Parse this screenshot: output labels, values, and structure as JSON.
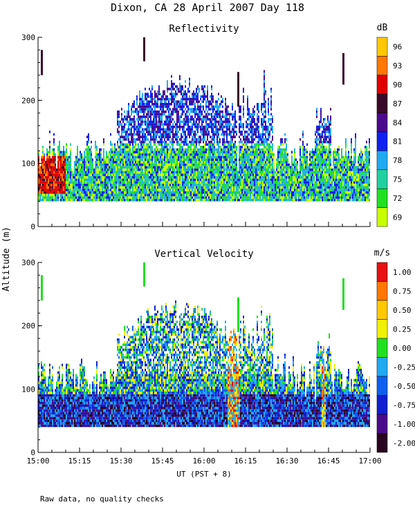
{
  "title": "Dixon, CA 28 April 2007  Day 118",
  "footnote": "Raw data, no quality checks",
  "shared_ylabel": "Altitude (m)",
  "chart_data": [
    {
      "type": "heatmap",
      "title": "Reflectivity",
      "unit": "dB",
      "ylim": [
        0,
        300
      ],
      "yticks": [
        0,
        100,
        200,
        300
      ],
      "xlim_minutes": [
        0,
        120
      ],
      "xtick_labels": [],
      "colorbar_labels": [
        "96",
        "93",
        "90",
        "87",
        "84",
        "81",
        "78",
        "75",
        "72",
        "69"
      ],
      "colorbar_colors": [
        "#ffc800",
        "#ff7800",
        "#e00000",
        "#3a0a2a",
        "#4a0a8c",
        "#1020f0",
        "#20aaf0",
        "#20d0a0",
        "#20e020",
        "#c8ff00"
      ]
    },
    {
      "type": "heatmap",
      "title": "Vertical Velocity",
      "unit": "m/s",
      "ylim": [
        0,
        300
      ],
      "yticks": [
        0,
        100,
        200,
        300
      ],
      "xlim_minutes": [
        0,
        120
      ],
      "xtick_labels": [
        "15:00",
        "15:15",
        "15:30",
        "15:45",
        "16:00",
        "16:15",
        "16:30",
        "16:45",
        "17:00"
      ],
      "xlabel": "UT  (PST + 8)",
      "colorbar_labels": [
        "1.00",
        "0.75",
        "0.50",
        "0.25",
        "0.00",
        "-0.25",
        "-0.50",
        "-0.75",
        "-1.00",
        "-2.00"
      ],
      "colorbar_colors": [
        "#e81010",
        "#ff7800",
        "#ffc800",
        "#f0f000",
        "#20e020",
        "#20aaf0",
        "#1060f0",
        "#1020d0",
        "#4a0a8c",
        "#2a0520"
      ]
    }
  ]
}
